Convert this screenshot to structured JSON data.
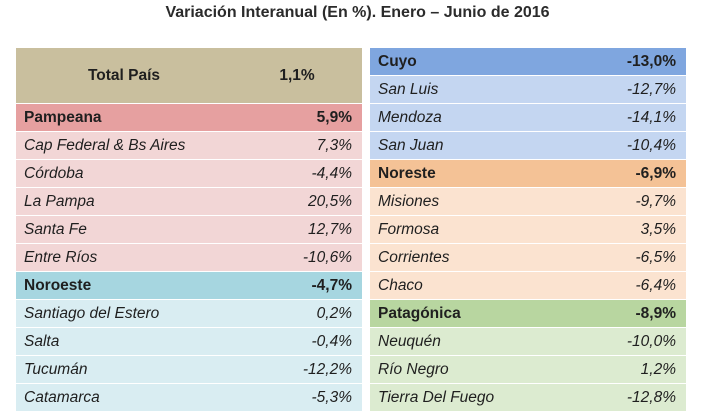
{
  "title": "Variación Interanual (En %). Enero – Junio de 2016",
  "total": {
    "label": "Total País",
    "value": "1,1%"
  },
  "pampeana": {
    "label": "Pampeana",
    "value": "5,9%",
    "items": [
      {
        "name": "Cap Federal & Bs Aires",
        "value": "7,3%"
      },
      {
        "name": "Córdoba",
        "value": "-4,4%"
      },
      {
        "name": "La Pampa",
        "value": "20,5%"
      },
      {
        "name": "Santa Fe",
        "value": "12,7%"
      },
      {
        "name": "Entre Ríos",
        "value": "-10,6%"
      }
    ]
  },
  "noroeste": {
    "label": "Noroeste",
    "value": "-4,7%",
    "items": [
      {
        "name": "Santiago del Estero",
        "value": "0,2%"
      },
      {
        "name": "Salta",
        "value": "-0,4%"
      },
      {
        "name": "Tucumán",
        "value": "-12,2%"
      },
      {
        "name": "Catamarca",
        "value": "-5,3%"
      }
    ]
  },
  "cuyo": {
    "label": "Cuyo",
    "value": "-13,0%",
    "items": [
      {
        "name": "San Luis",
        "value": "-12,7%"
      },
      {
        "name": "Mendoza",
        "value": "-14,1%"
      },
      {
        "name": "San Juan",
        "value": "-10,4%"
      }
    ]
  },
  "noreste": {
    "label": "Noreste",
    "value": "-6,9%",
    "items": [
      {
        "name": "Misiones",
        "value": "-9,7%"
      },
      {
        "name": "Formosa",
        "value": "3,5%"
      },
      {
        "name": "Corrientes",
        "value": "-6,5%"
      },
      {
        "name": "Chaco",
        "value": "-6,4%"
      }
    ]
  },
  "patagonica": {
    "label": "Patagónica",
    "value": "-8,9%",
    "items": [
      {
        "name": "Neuquén",
        "value": "-10,0%"
      },
      {
        "name": "Río Negro",
        "value": "1,2%"
      },
      {
        "name": "Tierra Del Fuego",
        "value": "-12,8%"
      }
    ]
  }
}
